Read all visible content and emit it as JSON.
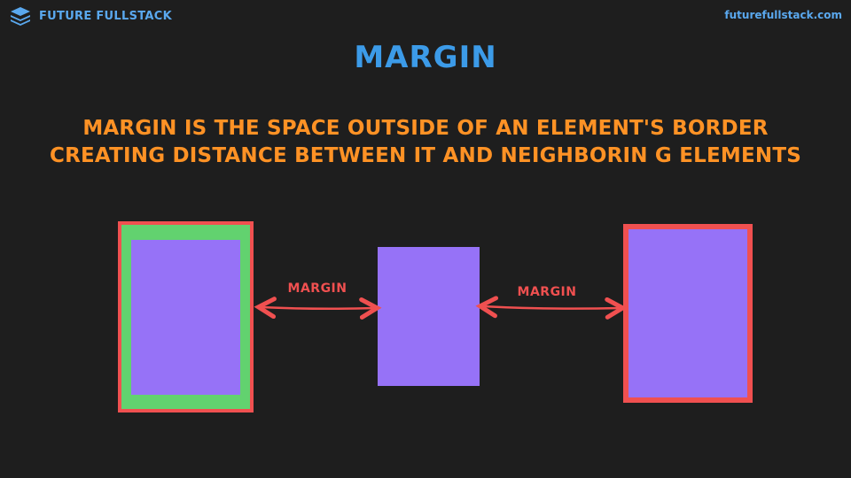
{
  "header": {
    "brand_name": "FUTURE FULLSTACK",
    "site_url": "futurefullstack.com",
    "logo_icon": "stacked-layers-icon"
  },
  "slide": {
    "title": "MARGIN",
    "subtitle_lines": [
      "MARGIN IS THE SPACE OUTSIDE OF AN ELEMENT'S BORDER",
      "CREATING DISTANCE BETWEEN IT AND NEIGHBORIN G ELEMENTS"
    ]
  },
  "diagram": {
    "left_box_label": "",
    "arrow_left_label": "MARGIN",
    "arrow_right_label": "MARGIN"
  },
  "colors": {
    "background": "#1e1e1e",
    "brand_blue": "#5aa8ee",
    "title_blue": "#3c9be8",
    "subtitle_orange": "#ff9225",
    "border_red": "#f05050",
    "padding_green": "#62d26f",
    "content_purple": "#9672f7",
    "arrow_red": "#f05050"
  }
}
